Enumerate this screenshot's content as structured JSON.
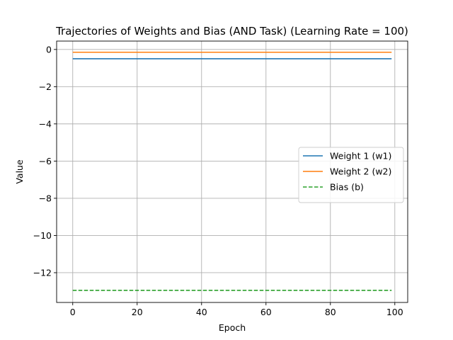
{
  "chart_data": {
    "type": "line",
    "title": "Trajectories of Weights and Bias (AND Task) (Learning Rate = 100)",
    "xlabel": "Epoch",
    "ylabel": "Value",
    "xlim": [
      -5,
      104
    ],
    "ylim": [
      -13.6,
      0.45
    ],
    "xticks": [
      0,
      20,
      40,
      60,
      80,
      100
    ],
    "yticks": [
      0,
      -2,
      -4,
      -6,
      -8,
      -10,
      -12
    ],
    "ytick_labels": [
      "0",
      "−2",
      "−4",
      "−6",
      "−8",
      "−10",
      "−12"
    ],
    "grid": true,
    "legend_position": "center-right",
    "series": [
      {
        "name": "Weight 1 (w1)",
        "x_start": 0,
        "x_end": 99,
        "values": [
          -0.5,
          -0.5
        ],
        "color": "#1f77b4",
        "style": "solid"
      },
      {
        "name": "Weight 2 (w2)",
        "x_start": 0,
        "x_end": 99,
        "values": [
          -0.15,
          -0.15
        ],
        "color": "#ff7f0e",
        "style": "solid"
      },
      {
        "name": "Bias (b)",
        "x_start": 0,
        "x_end": 99,
        "values": [
          -12.95,
          -12.95
        ],
        "color": "#2ca02c",
        "style": "dashed"
      }
    ]
  }
}
